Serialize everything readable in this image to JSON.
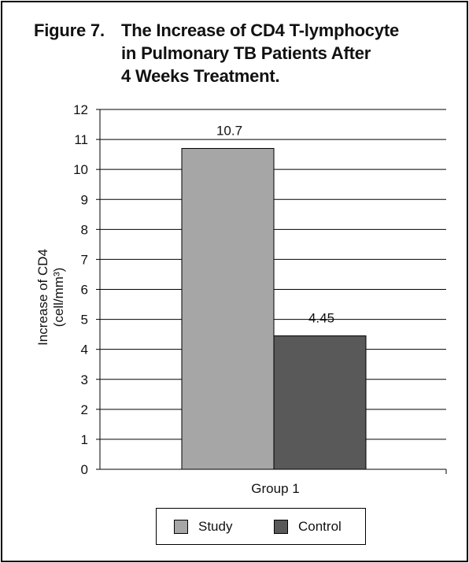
{
  "figure": {
    "label": "Figure 7.",
    "title_lines": [
      "The Increase of CD4 T-lymphocyte",
      "in Pulmonary TB Patients After",
      "4 Weeks Treatment."
    ]
  },
  "chart_data": {
    "type": "bar",
    "categories": [
      "Group 1"
    ],
    "series": [
      {
        "name": "Study",
        "values": [
          10.7
        ],
        "color": "#a6a6a6"
      },
      {
        "name": "Control",
        "values": [
          4.45
        ],
        "color": "#595959"
      }
    ],
    "data_labels": [
      "10.7",
      "4.45"
    ],
    "ylabel_lines": [
      "Increase of CD4",
      "(cell/mm³)"
    ],
    "xlabel": "",
    "ylim": [
      0,
      12
    ],
    "y_ticks": [
      0,
      1,
      2,
      3,
      4,
      5,
      6,
      7,
      8,
      9,
      10,
      11,
      12
    ],
    "grid": true,
    "legend_position": "bottom"
  }
}
